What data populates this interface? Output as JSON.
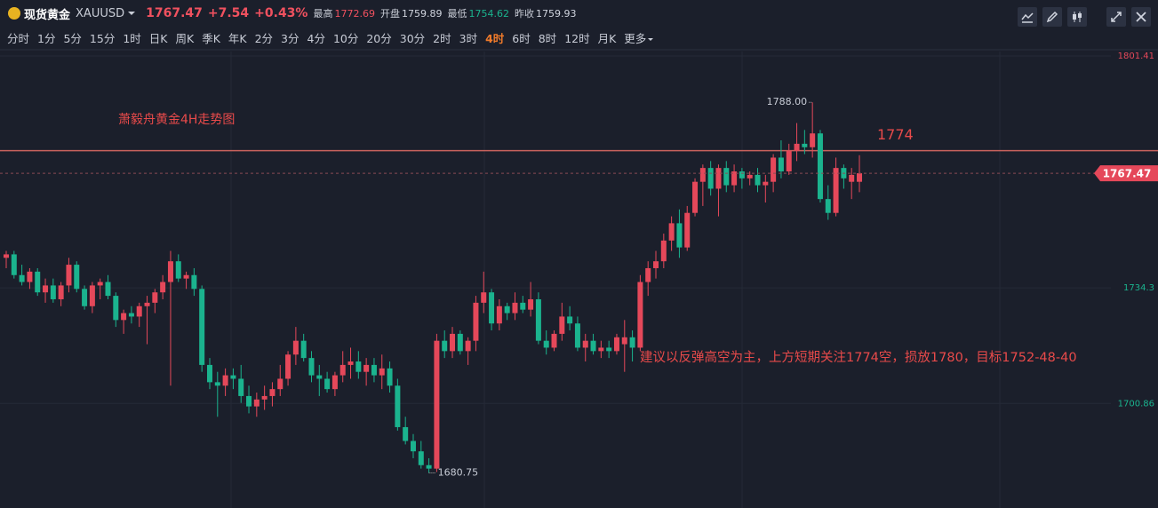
{
  "header": {
    "name": "现货黄金",
    "symbol": "XAUUSD",
    "price": "1767.47",
    "change": "+7.54",
    "change_pct": "+0.43%",
    "stats": [
      {
        "label": "最高",
        "value": "1772.69"
      },
      {
        "label": "开盘",
        "value": "1759.89"
      },
      {
        "label": "最低",
        "value": "1754.62"
      },
      {
        "label": "昨收",
        "value": "1759.93"
      }
    ]
  },
  "toolbar": {
    "timeframes": [
      "分时",
      "1分",
      "5分",
      "15分",
      "1时",
      "日K",
      "周K",
      "季K",
      "年K",
      "2分",
      "3分",
      "4分",
      "10分",
      "20分",
      "30分",
      "2时",
      "3时",
      "4时",
      "6时",
      "8时",
      "12时",
      "月K",
      "更多"
    ],
    "active_index": 17
  },
  "chart_data": {
    "type": "candlestick",
    "up_color": "#e5485a",
    "down_color": "#1bb38e",
    "ylim": [
      1670.6,
      1802.7
    ],
    "yticks": [
      1801.41,
      1734.3,
      1700.86
    ],
    "grid": true,
    "title": "萧毅舟黄金4H走势图",
    "hline": 1774,
    "note": "建议以反弹高空为主，上方短期关注1774空，损放1780，目标1752-48-40",
    "max_label": {
      "value": 1788,
      "label": "1788.00"
    },
    "ohlc": [
      [
        1743,
        1745,
        1740,
        1744
      ],
      [
        1744,
        1745,
        1737,
        1738
      ],
      [
        1738,
        1741,
        1735,
        1736
      ],
      [
        1736,
        1740,
        1734,
        1739
      ],
      [
        1739,
        1740,
        1732,
        1733
      ],
      [
        1733,
        1737,
        1730,
        1735
      ],
      [
        1735,
        1737,
        1730,
        1731
      ],
      [
        1731,
        1736,
        1729,
        1735
      ],
      [
        1735,
        1743,
        1733,
        1741
      ],
      [
        1741,
        1742,
        1733,
        1734
      ],
      [
        1734,
        1735,
        1728,
        1729
      ],
      [
        1729,
        1736,
        1727,
        1735
      ],
      [
        1735,
        1737,
        1731,
        1736
      ],
      [
        1736,
        1738,
        1731,
        1732
      ],
      [
        1732,
        1733,
        1723,
        1725
      ],
      [
        1725,
        1728,
        1721,
        1727
      ],
      [
        1727,
        1729,
        1724,
        1726
      ],
      [
        1726,
        1730,
        1723,
        1729
      ],
      [
        1729,
        1732,
        1718,
        1730
      ],
      [
        1730,
        1734,
        1727,
        1733
      ],
      [
        1733,
        1738,
        1731,
        1736
      ],
      [
        1736,
        1745,
        1706,
        1742
      ],
      [
        1742,
        1744,
        1736,
        1737
      ],
      [
        1737,
        1739,
        1734,
        1738
      ],
      [
        1738,
        1740,
        1732,
        1734
      ],
      [
        1734,
        1735,
        1710,
        1712
      ],
      [
        1712,
        1714,
        1705,
        1707
      ],
      [
        1707,
        1710,
        1697,
        1706
      ],
      [
        1706,
        1711,
        1703,
        1709
      ],
      [
        1709,
        1711,
        1705,
        1708
      ],
      [
        1708,
        1712,
        1701,
        1703
      ],
      [
        1703,
        1706,
        1698,
        1700
      ],
      [
        1700,
        1704,
        1697,
        1702
      ],
      [
        1702,
        1706,
        1699,
        1703
      ],
      [
        1703,
        1707,
        1700,
        1705
      ],
      [
        1705,
        1712,
        1703,
        1708
      ],
      [
        1708,
        1716,
        1706,
        1715
      ],
      [
        1715,
        1723,
        1712,
        1719
      ],
      [
        1719,
        1721,
        1713,
        1714
      ],
      [
        1714,
        1716,
        1707,
        1709
      ],
      [
        1709,
        1712,
        1703,
        1708
      ],
      [
        1708,
        1710,
        1704,
        1705
      ],
      [
        1705,
        1710,
        1703,
        1709
      ],
      [
        1709,
        1716,
        1707,
        1712
      ],
      [
        1712,
        1717,
        1708,
        1713
      ],
      [
        1713,
        1716,
        1708,
        1710
      ],
      [
        1710,
        1714,
        1706,
        1712
      ],
      [
        1712,
        1714,
        1707,
        1709
      ],
      [
        1709,
        1715,
        1705,
        1711
      ],
      [
        1711,
        1713,
        1704,
        1706
      ],
      [
        1706,
        1708,
        1693,
        1694
      ],
      [
        1694,
        1697,
        1689,
        1690
      ],
      [
        1690,
        1692,
        1685,
        1687
      ],
      [
        1687,
        1690,
        1682,
        1683
      ],
      [
        1683,
        1685,
        1680.75,
        1682
      ],
      [
        1682,
        1721,
        1681,
        1719
      ],
      [
        1719,
        1722,
        1714,
        1716
      ],
      [
        1716,
        1723,
        1714,
        1721
      ],
      [
        1721,
        1722,
        1715,
        1716
      ],
      [
        1716,
        1720,
        1712,
        1719
      ],
      [
        1719,
        1732,
        1716,
        1730
      ],
      [
        1730,
        1739,
        1727,
        1733
      ],
      [
        1733,
        1734,
        1722,
        1724
      ],
      [
        1724,
        1731,
        1722,
        1729
      ],
      [
        1729,
        1730,
        1725,
        1727
      ],
      [
        1727,
        1733,
        1725,
        1730
      ],
      [
        1730,
        1732,
        1727,
        1728
      ],
      [
        1728,
        1736,
        1726,
        1731
      ],
      [
        1731,
        1733,
        1718,
        1719
      ],
      [
        1719,
        1722,
        1715,
        1717
      ],
      [
        1717,
        1722,
        1716,
        1721
      ],
      [
        1721,
        1730,
        1719,
        1726
      ],
      [
        1726,
        1729,
        1722,
        1724
      ],
      [
        1724,
        1726,
        1716,
        1717
      ],
      [
        1717,
        1721,
        1713,
        1719
      ],
      [
        1719,
        1721,
        1715,
        1716
      ],
      [
        1716,
        1719,
        1714,
        1717
      ],
      [
        1717,
        1719,
        1714,
        1716
      ],
      [
        1716,
        1721,
        1715,
        1720
      ],
      [
        1718,
        1725,
        1710,
        1720
      ],
      [
        1720,
        1722,
        1713,
        1717
      ],
      [
        1717,
        1738,
        1716,
        1736
      ],
      [
        1736,
        1742,
        1732,
        1740
      ],
      [
        1740,
        1745,
        1737,
        1742
      ],
      [
        1742,
        1750,
        1740,
        1748
      ],
      [
        1748,
        1755,
        1745,
        1753
      ],
      [
        1753,
        1757,
        1743,
        1746
      ],
      [
        1746,
        1758,
        1745,
        1756
      ],
      [
        1756,
        1766,
        1755,
        1765
      ],
      [
        1765,
        1770,
        1758,
        1769
      ],
      [
        1769,
        1771,
        1761,
        1763
      ],
      [
        1763,
        1770,
        1755,
        1769
      ],
      [
        1769,
        1771,
        1762,
        1764
      ],
      [
        1764,
        1770,
        1762,
        1768
      ],
      [
        1768,
        1769,
        1763,
        1766
      ],
      [
        1766,
        1768,
        1764,
        1767
      ],
      [
        1767,
        1769,
        1762,
        1764
      ],
      [
        1764,
        1767,
        1759,
        1765
      ],
      [
        1765,
        1773,
        1762,
        1772
      ],
      [
        1772,
        1777,
        1766,
        1768
      ],
      [
        1768,
        1776,
        1767,
        1774
      ],
      [
        1774,
        1782,
        1771,
        1776
      ],
      [
        1776,
        1780,
        1773,
        1775
      ],
      [
        1775,
        1788,
        1772,
        1779
      ],
      [
        1779,
        1780,
        1759,
        1760
      ],
      [
        1760,
        1764,
        1754,
        1756
      ],
      [
        1756,
        1772,
        1755,
        1769
      ],
      [
        1769,
        1770,
        1763,
        1766
      ],
      [
        1765,
        1769,
        1760,
        1767
      ],
      [
        1765,
        1772.69,
        1762,
        1767.47
      ]
    ]
  }
}
